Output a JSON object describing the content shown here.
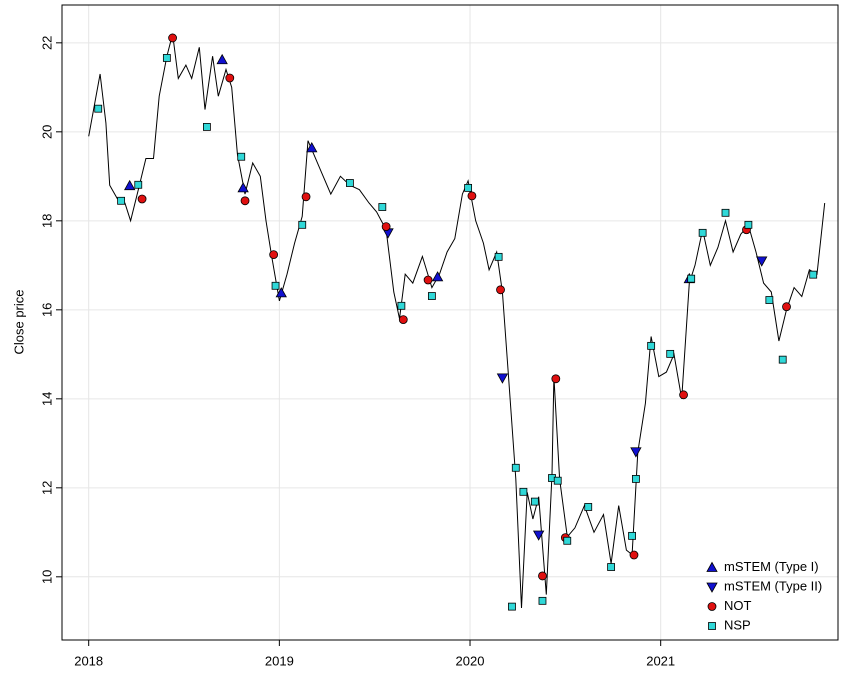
{
  "chart_data": {
    "type": "line",
    "ylabel": "Close price",
    "color": "#000000",
    "x": [
      2018.0,
      2018.03,
      2018.06,
      2018.09,
      2018.11,
      2018.15,
      2018.19,
      2018.22,
      2018.26,
      2018.3,
      2018.34,
      2018.37,
      2018.41,
      2018.44,
      2018.47,
      2018.51,
      2018.54,
      2018.58,
      2018.61,
      2018.65,
      2018.68,
      2018.72,
      2018.75,
      2018.78,
      2018.82,
      2018.86,
      2018.9,
      2018.93,
      2018.96,
      2019.0,
      2019.04,
      2019.08,
      2019.12,
      2019.15,
      2019.18,
      2019.22,
      2019.27,
      2019.32,
      2019.37,
      2019.42,
      2019.47,
      2019.51,
      2019.56,
      2019.6,
      2019.63,
      2019.66,
      2019.7,
      2019.75,
      2019.8,
      2019.84,
      2019.88,
      2019.92,
      2019.96,
      2019.99,
      2020.03,
      2020.07,
      2020.1,
      2020.14,
      2020.17,
      2020.2,
      2020.24,
      2020.27,
      2020.3,
      2020.33,
      2020.36,
      2020.4,
      2020.43,
      2020.44,
      2020.47,
      2020.51,
      2020.55,
      2020.6,
      2020.65,
      2020.7,
      2020.74,
      2020.78,
      2020.82,
      2020.85,
      2020.88,
      2020.92,
      2020.95,
      2020.99,
      2021.03,
      2021.07,
      2021.11,
      2021.15,
      2021.18,
      2021.22,
      2021.26,
      2021.3,
      2021.34,
      2021.38,
      2021.42,
      2021.46,
      2021.5,
      2021.54,
      2021.58,
      2021.62,
      2021.66,
      2021.7,
      2021.74,
      2021.78,
      2021.82,
      2021.86
    ],
    "values": [
      19.9,
      20.6,
      21.3,
      20.2,
      18.8,
      18.5,
      18.4,
      18.0,
      18.7,
      19.4,
      19.4,
      20.8,
      21.7,
      22.2,
      21.2,
      21.5,
      21.2,
      21.9,
      20.5,
      21.7,
      20.8,
      21.4,
      21.0,
      19.5,
      18.6,
      19.3,
      19.0,
      18.0,
      17.2,
      16.2,
      16.8,
      17.5,
      18.1,
      19.8,
      19.5,
      19.1,
      18.6,
      19.0,
      18.8,
      18.7,
      18.4,
      18.2,
      17.8,
      16.4,
      15.8,
      16.8,
      16.6,
      17.2,
      16.5,
      16.8,
      17.3,
      17.6,
      18.6,
      18.9,
      18.0,
      17.5,
      16.9,
      17.3,
      16.4,
      14.6,
      12.2,
      9.3,
      11.9,
      11.3,
      11.8,
      9.6,
      12.3,
      14.5,
      12.2,
      10.9,
      11.1,
      11.6,
      11.0,
      11.4,
      10.3,
      11.6,
      10.6,
      10.5,
      12.8,
      13.9,
      15.4,
      14.5,
      14.6,
      15.0,
      14.0,
      16.6,
      17.0,
      17.8,
      17.0,
      17.4,
      18.0,
      17.3,
      17.7,
      17.9,
      17.3,
      16.6,
      16.4,
      15.3,
      16.0,
      16.5,
      16.3,
      16.9,
      16.8,
      18.4
    ],
    "markers": [
      {
        "name": "mSTEM (Type I)",
        "shape": "triangle-up",
        "color": "#1010d0",
        "x": [
          2018.215,
          2018.7,
          2018.81,
          2019.01,
          2019.17,
          2019.83,
          2021.15
        ],
        "values": [
          18.79,
          21.62,
          18.74,
          16.38,
          19.64,
          16.74,
          16.7
        ]
      },
      {
        "name": "mSTEM (Type II)",
        "shape": "triangle-down",
        "color": "#1010d0",
        "x": [
          2019.57,
          2020.17,
          2020.36,
          2020.87,
          2021.53
        ],
        "values": [
          17.73,
          14.47,
          10.94,
          12.81,
          17.1
        ]
      },
      {
        "name": "NOT",
        "shape": "circle",
        "color": "#e01010",
        "x": [
          2018.44,
          2018.28,
          2018.74,
          2018.82,
          2018.97,
          2019.14,
          2019.56,
          2019.65,
          2019.78,
          2020.01,
          2020.16,
          2020.38,
          2020.45,
          2020.5,
          2020.86,
          2021.12,
          2021.45,
          2021.66
        ],
        "values": [
          22.11,
          18.49,
          21.21,
          18.45,
          17.24,
          18.54,
          17.87,
          15.78,
          16.67,
          18.56,
          16.45,
          10.02,
          14.45,
          10.88,
          10.49,
          14.09,
          17.8,
          16.07
        ]
      },
      {
        "name": "NSP",
        "shape": "square",
        "color": "#30d8d8",
        "x": [
          2018.05,
          2018.17,
          2018.26,
          2018.41,
          2018.62,
          2018.8,
          2018.98,
          2019.12,
          2019.37,
          2019.54,
          2019.64,
          2019.8,
          2019.99,
          2020.15,
          2020.22,
          2020.24,
          2020.28,
          2020.34,
          2020.38,
          2020.43,
          2020.46,
          2020.51,
          2020.62,
          2020.74,
          2020.85,
          2020.87,
          2020.95,
          2021.05,
          2021.16,
          2021.22,
          2021.34,
          2021.46,
          2021.57,
          2021.64,
          2021.8
        ],
        "values": [
          20.52,
          18.45,
          18.81,
          21.66,
          20.11,
          19.44,
          16.54,
          17.91,
          18.85,
          18.31,
          16.09,
          16.31,
          18.74,
          17.19,
          9.33,
          12.45,
          11.91,
          11.69,
          9.46,
          12.22,
          12.16,
          10.81,
          11.57,
          10.22,
          10.92,
          12.2,
          15.19,
          15.01,
          16.7,
          17.73,
          18.18,
          17.91,
          16.22,
          14.88,
          16.79
        ]
      }
    ],
    "xlim": [
      2017.86,
      2021.93
    ],
    "xticks": [
      2018,
      2019,
      2020,
      2021
    ],
    "ylim": [
      8.58,
      22.85
    ],
    "yticks": [
      10,
      12,
      14,
      16,
      18,
      20,
      22
    ],
    "grid": true,
    "legend": "bottomright"
  }
}
